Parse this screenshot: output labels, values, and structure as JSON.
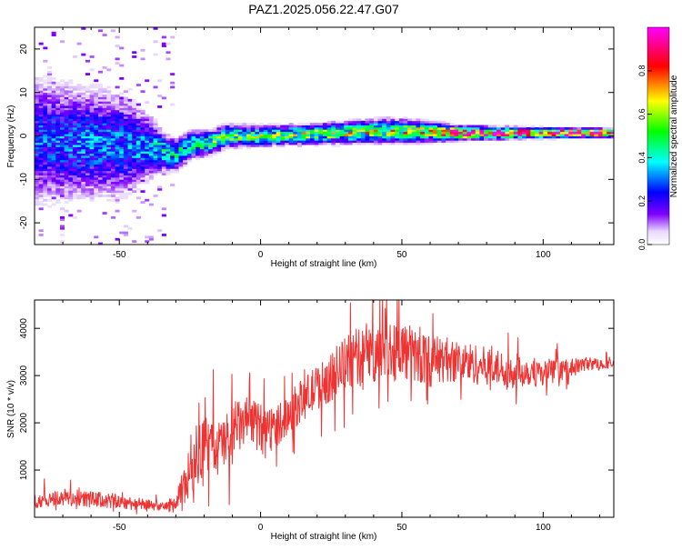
{
  "title": "PAZ1.2025.056.22.47.G07",
  "colorbar": {
    "label": "Normalized spectral amplitude",
    "ticks": [
      "0.0",
      "0.2",
      "0.4",
      "0.6",
      "0.8"
    ]
  },
  "chart_data": [
    {
      "type": "heatmap",
      "xlabel": "Height of straight line (km)",
      "ylabel": "Frequency (Hz)",
      "xlim": [
        -80,
        125
      ],
      "ylim": [
        -25,
        25
      ],
      "xticks": [
        -50,
        0,
        50,
        100
      ],
      "yticks": [
        -20,
        -10,
        0,
        10,
        20
      ],
      "colormap": [
        "#ffffff",
        "#7f00ff",
        "#0000ff",
        "#00ffff",
        "#00ff00",
        "#ffff00",
        "#ff0000",
        "#ff00ff"
      ],
      "clim": [
        0,
        1
      ],
      "ridge": [
        {
          "x": -80,
          "f": -1.0,
          "spread": 8.0,
          "amp": 0.25
        },
        {
          "x": -65,
          "f": -1.5,
          "spread": 7.0,
          "amp": 0.28
        },
        {
          "x": -50,
          "f": -2.0,
          "spread": 6.5,
          "amp": 0.28
        },
        {
          "x": -40,
          "f": -2.5,
          "spread": 4.0,
          "amp": 0.32
        },
        {
          "x": -35,
          "f": -3.5,
          "spread": 2.5,
          "amp": 0.4
        },
        {
          "x": -30,
          "f": -4.5,
          "spread": 2.0,
          "amp": 0.38
        },
        {
          "x": -25,
          "f": -2.0,
          "spread": 1.8,
          "amp": 0.42
        },
        {
          "x": -18,
          "f": -1.5,
          "spread": 1.5,
          "amp": 0.45
        },
        {
          "x": -12,
          "f": 0.0,
          "spread": 1.4,
          "amp": 0.5
        },
        {
          "x": 0,
          "f": 0.0,
          "spread": 1.2,
          "amp": 0.52
        },
        {
          "x": 20,
          "f": 0.5,
          "spread": 1.2,
          "amp": 0.55
        },
        {
          "x": 45,
          "f": 1.2,
          "spread": 1.4,
          "amp": 0.6
        },
        {
          "x": 60,
          "f": 1.0,
          "spread": 1.2,
          "amp": 0.62
        },
        {
          "x": 70,
          "f": 0.7,
          "spread": 0.8,
          "amp": 0.95
        },
        {
          "x": 100,
          "f": 0.7,
          "spread": 0.6,
          "amp": 0.97
        },
        {
          "x": 125,
          "f": 0.7,
          "spread": 0.5,
          "amp": 0.98
        }
      ]
    },
    {
      "type": "line",
      "xlabel": "Height of straight line (km)",
      "ylabel": "SNR (10 * v/v)",
      "xlim": [
        -80,
        125
      ],
      "ylim": [
        0,
        4600
      ],
      "xticks": [
        -50,
        0,
        50,
        100
      ],
      "yticks": [
        1000,
        2000,
        3000,
        4000
      ],
      "color": "#ee3333",
      "series": [
        {
          "x": [
            -80,
            -70,
            -60,
            -50,
            -40,
            -35,
            -30,
            -27,
            -25,
            -20,
            -15,
            -10,
            -5,
            0,
            5,
            10,
            15,
            20,
            25,
            30,
            35,
            40,
            45,
            50,
            55,
            60,
            65,
            70,
            75,
            80,
            85,
            90,
            95,
            100,
            105,
            110,
            115,
            120,
            125
          ],
          "y": [
            350,
            420,
            380,
            330,
            260,
            220,
            280,
            600,
            1100,
            1500,
            1450,
            1750,
            2050,
            1950,
            1900,
            2200,
            2500,
            2750,
            2950,
            3250,
            3400,
            3450,
            3550,
            3550,
            3400,
            3300,
            3350,
            3300,
            3250,
            3200,
            3150,
            3100,
            3100,
            3050,
            3100,
            3150,
            3250,
            3250,
            3250
          ],
          "noise": [
            150,
            200,
            180,
            170,
            120,
            80,
            200,
            500,
            700,
            650,
            600,
            650,
            500,
            450,
            450,
            450,
            450,
            480,
            500,
            600,
            650,
            650,
            700,
            650,
            600,
            550,
            500,
            450,
            450,
            400,
            380,
            380,
            330,
            300,
            230,
            200,
            150,
            120,
            100
          ]
        }
      ]
    }
  ]
}
